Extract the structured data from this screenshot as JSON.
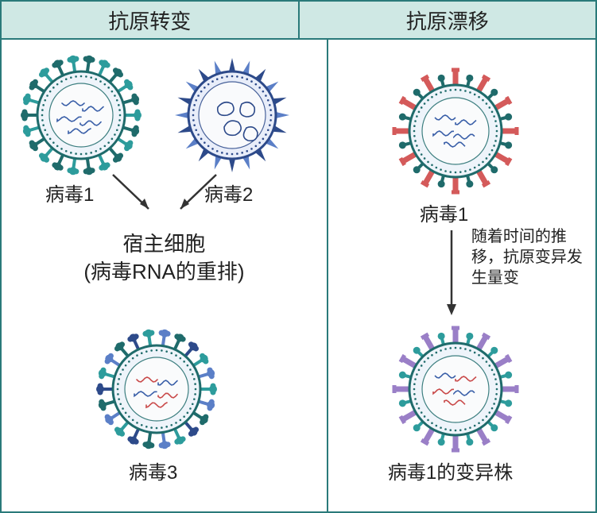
{
  "headers": {
    "left": "抗原转变",
    "right": "抗原漂移"
  },
  "left": {
    "virus1_label": "病毒1",
    "virus2_label": "病毒2",
    "host_line1": "宿主细胞",
    "host_line2": "(病毒RNA的重排)",
    "virus3_label": "病毒3"
  },
  "right": {
    "virus1_label": "病毒1",
    "drift_text": "随着时间的推移，抗原变异发生量变",
    "variant_label": "病毒1的变异株"
  },
  "colors": {
    "border": "#2a7a7a",
    "header_bg_left": "#cfe8e4",
    "header_bg_right": "#cfe8e4",
    "teal": "#2d9c9c",
    "teal_dark": "#1f6b6b",
    "blue": "#5b7fc7",
    "blue_dark": "#2d4a8a",
    "red": "#d45a5a",
    "purple": "#9a7fc7",
    "inner_bg": "#eef4fa",
    "rna_blue": "#3a5fa8",
    "rna_red": "#c94a4a",
    "arrow": "#333333"
  },
  "virus_style": {
    "radius": 60,
    "spike_len": 16,
    "spike_count": 24,
    "inner_radius": 44,
    "dot_ring_radius": 50
  }
}
